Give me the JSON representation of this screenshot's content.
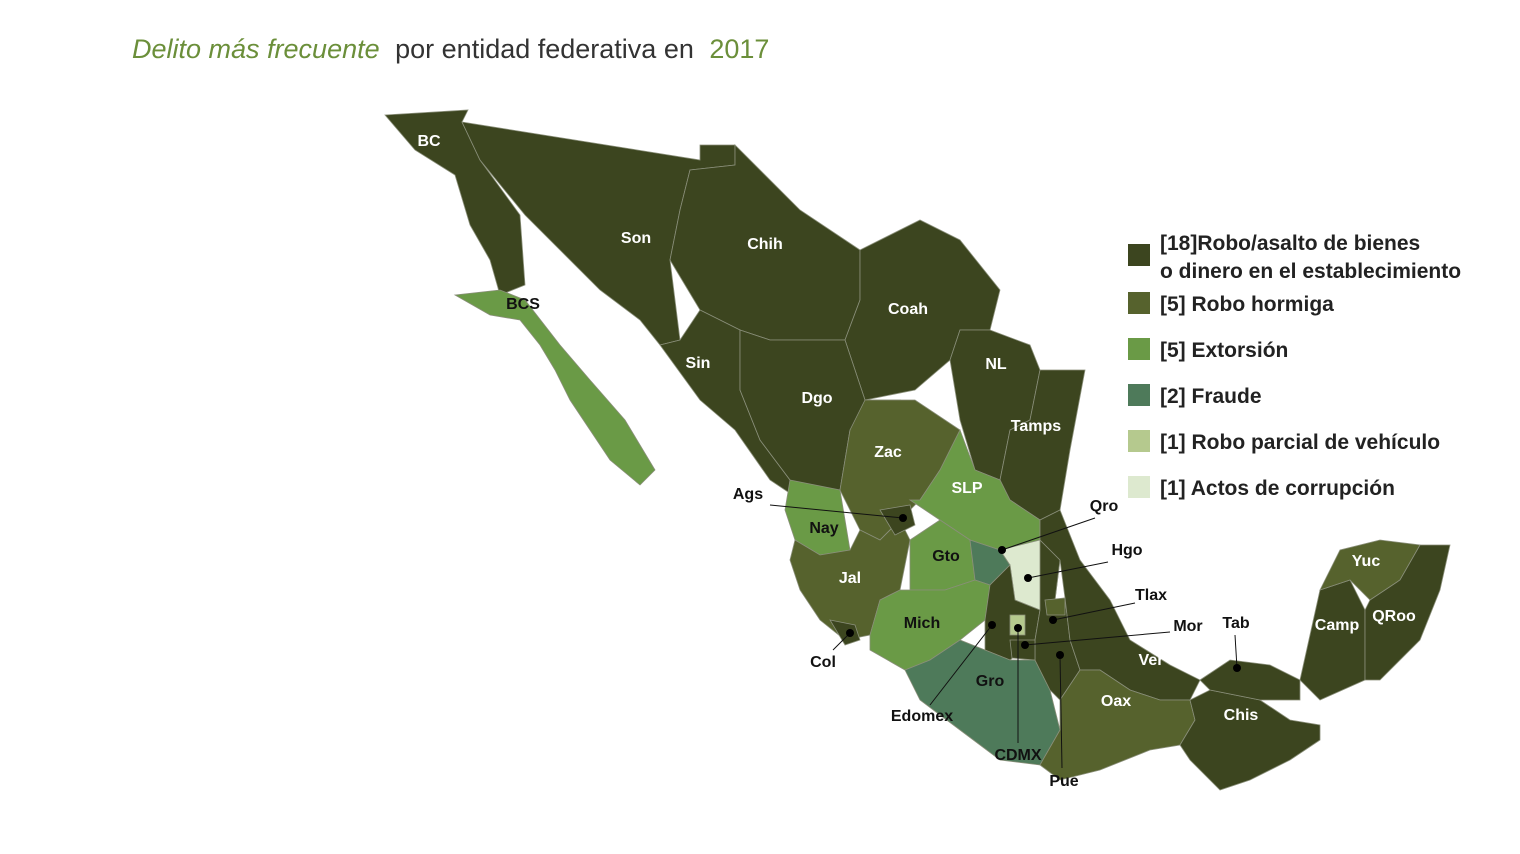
{
  "title": {
    "part1": "Delito más frecuente",
    "part2": "por entidad federativa en",
    "part3": "2017"
  },
  "legend": [
    {
      "lines": [
        "[18]Robo/asalto de bienes",
        "o dinero en el establecimiento"
      ]
    },
    {
      "lines": [
        "[5] Robo hormiga"
      ]
    },
    {
      "lines": [
        "[5] Extorsión"
      ]
    },
    {
      "lines": [
        "[2] Fraude"
      ]
    },
    {
      "lines": [
        "[1] Robo parcial de vehículo"
      ]
    },
    {
      "lines": [
        "[1] Actos de corrupción"
      ]
    }
  ],
  "states": [
    "BC",
    "BCS",
    "Son",
    "Chih",
    "Coah",
    "NL",
    "Tamps",
    "Sin",
    "Dgo",
    "Zac",
    "SLP",
    "Nay",
    "Ags",
    "Jal",
    "Gto",
    "Qro",
    "Hgo",
    "Mich",
    "Col",
    "Edomex",
    "CDMX",
    "Tlax",
    "Mor",
    "Gro",
    "Pue",
    "Ver",
    "Oax",
    "Chis",
    "Tab",
    "Camp",
    "Yuc",
    "QRoo"
  ]
}
